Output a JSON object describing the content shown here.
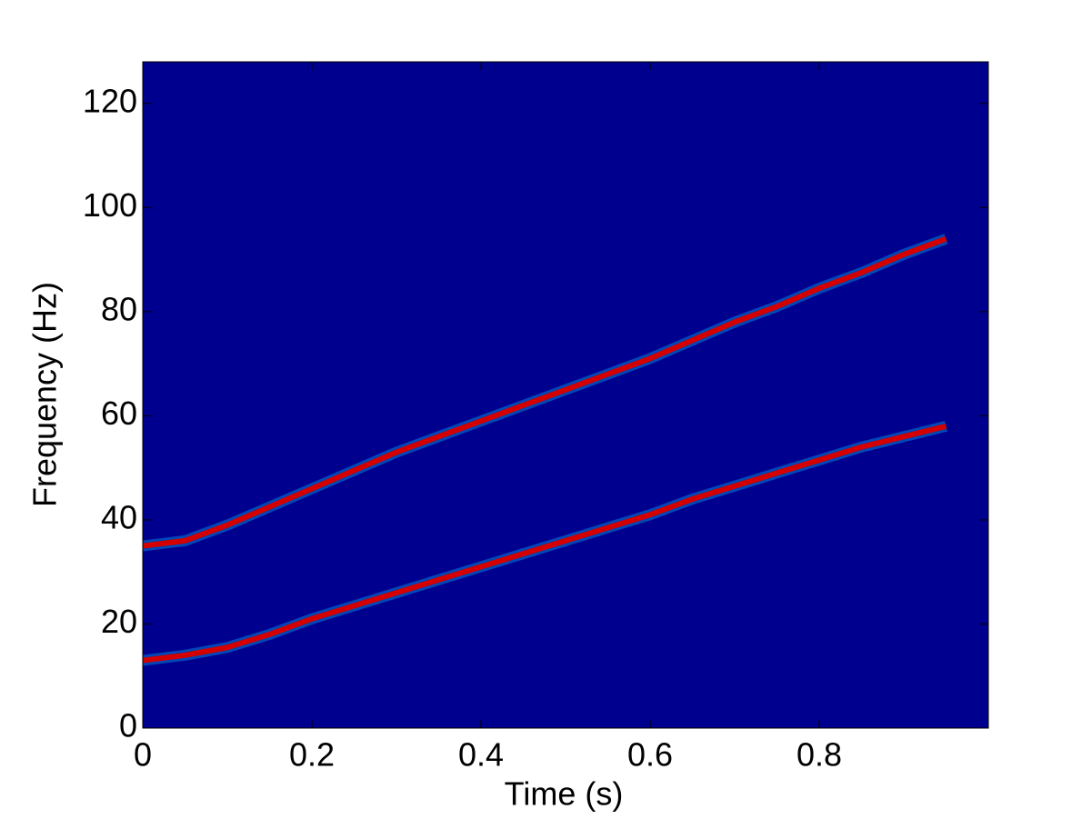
{
  "chart_data": {
    "type": "spectrogram",
    "xlabel": "Time (s)",
    "ylabel": "Frequency (Hz)",
    "background": "#00008f",
    "x": [
      0,
      0.05,
      0.1,
      0.15,
      0.2,
      0.25,
      0.3,
      0.35,
      0.4,
      0.45,
      0.5,
      0.55,
      0.6,
      0.65,
      0.7,
      0.75,
      0.8,
      0.85,
      0.9,
      0.95
    ],
    "series": [
      {
        "color": "#d40000",
        "values": [
          35,
          36,
          39,
          42.5,
          46,
          49.5,
          53,
          56,
          59,
          62,
          65,
          68,
          71,
          74.5,
          78,
          81,
          84.5,
          87.5,
          91,
          94
        ]
      },
      {
        "color": "#d40000",
        "values": [
          13,
          14,
          15.5,
          18,
          21,
          23.5,
          26,
          28.5,
          31,
          33.5,
          36,
          38.5,
          41,
          44,
          46.5,
          49,
          51.5,
          54,
          56,
          58
        ]
      }
    ],
    "xlim": [
      0,
      1
    ],
    "ylim": [
      0,
      128
    ],
    "xticks": [
      0,
      0.2,
      0.4,
      0.6,
      0.8
    ],
    "yticks": [
      0,
      20,
      40,
      60,
      80,
      100,
      120
    ]
  }
}
